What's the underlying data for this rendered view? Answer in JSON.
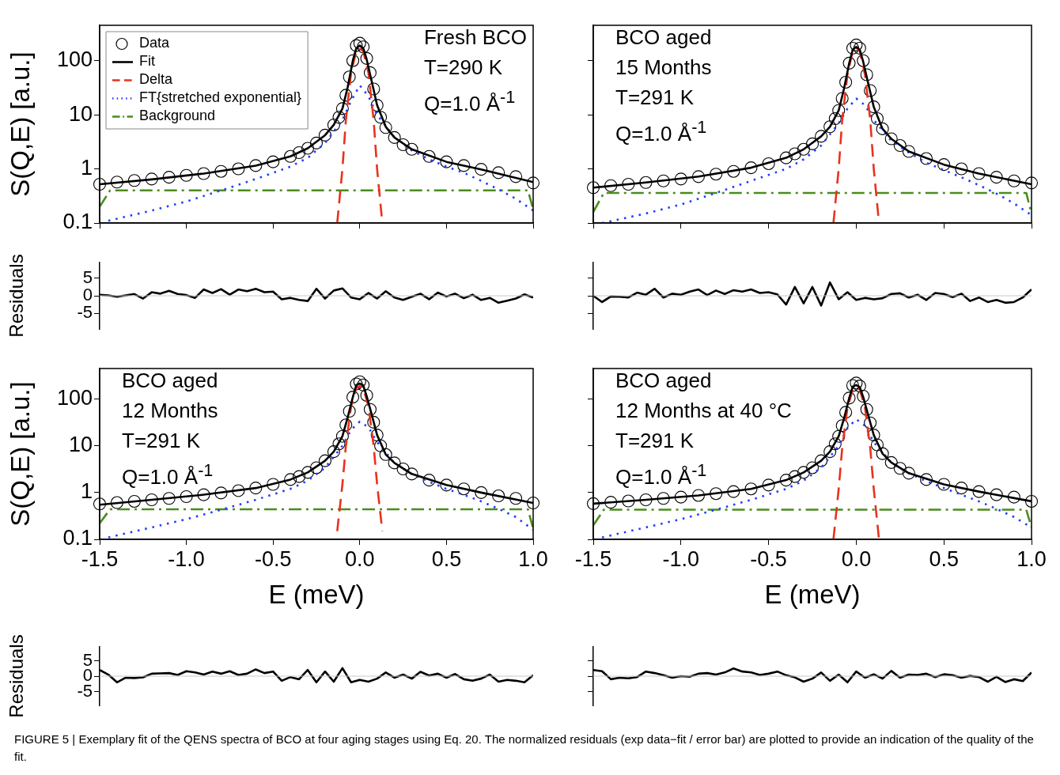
{
  "chart_data": [
    {
      "type": "line",
      "ylabel": "S(Q,E) [a.u.]",
      "log": true,
      "xlim": [
        -1.5,
        1.0
      ],
      "xticks": [
        -1.5,
        -1,
        -0.5,
        0,
        0.5,
        1
      ],
      "ylim": [
        0.1,
        450
      ],
      "yticks": [
        0.1,
        1,
        10,
        100
      ],
      "tick_labels": "y",
      "legend": "top left",
      "annotations": [
        "Fresh BCO",
        "T=290 K",
        "Q=1.0 Å$^{-1}$"
      ],
      "series": [
        {
          "name": "Data",
          "type": "scatter",
          "marker": "circle",
          "color": "#000000",
          "x": [
            -1.5,
            -1.4,
            -1.3,
            -1.2,
            -1.1,
            -1.0,
            -0.9,
            -0.8,
            -0.7,
            -0.6,
            -0.5,
            -0.4,
            -0.35,
            -0.3,
            -0.25,
            -0.2,
            -0.15,
            -0.12,
            -0.1,
            -0.08,
            -0.06,
            -0.04,
            -0.02,
            0,
            0.02,
            0.04,
            0.06,
            0.08,
            0.1,
            0.12,
            0.15,
            0.2,
            0.25,
            0.3,
            0.4,
            0.5,
            0.6,
            0.7,
            0.8,
            0.9,
            1.0
          ],
          "values": [
            0.52,
            0.57,
            0.61,
            0.65,
            0.7,
            0.76,
            0.82,
            0.9,
            1.0,
            1.15,
            1.35,
            1.7,
            2.0,
            2.4,
            3.0,
            4.2,
            6.5,
            9,
            13,
            23,
            50,
            100,
            190,
            210,
            180,
            110,
            60,
            30,
            15,
            9,
            5.8,
            3.8,
            2.8,
            2.3,
            1.7,
            1.35,
            1.15,
            0.98,
            0.85,
            0.72,
            0.55
          ]
        },
        {
          "name": "Fit",
          "type": "line",
          "line_style": "solid",
          "color": "#000000",
          "x": [
            -1.5,
            -1.2,
            -0.9,
            -0.6,
            -0.4,
            -0.3,
            -0.2,
            -0.15,
            -0.1,
            -0.07,
            -0.04,
            -0.02,
            0,
            0.02,
            0.04,
            0.07,
            0.1,
            0.15,
            0.2,
            0.3,
            0.5,
            0.7,
            1.0
          ],
          "values": [
            0.52,
            0.64,
            0.82,
            1.15,
            1.7,
            2.4,
            4.2,
            6.5,
            13,
            32,
            100,
            170,
            190,
            170,
            105,
            40,
            15,
            6,
            3.8,
            2.3,
            1.35,
            0.98,
            0.57
          ]
        },
        {
          "name": "Delta",
          "type": "line",
          "line_style": "dashed",
          "color": "#e8321e",
          "x": [
            -0.13,
            -0.1,
            -0.08,
            -0.05,
            -0.02,
            0,
            0.02,
            0.05,
            0.08,
            0.1,
            0.13
          ],
          "values": [
            0.1,
            1,
            8,
            60,
            150,
            170,
            150,
            60,
            8,
            1,
            0.1
          ]
        },
        {
          "name": "FT{stretched exponential}",
          "type": "line",
          "line_style": "dotted",
          "color": "#1f3cff",
          "x": [
            -1.45,
            -1.2,
            -1.0,
            -0.8,
            -0.6,
            -0.4,
            -0.3,
            -0.2,
            -0.1,
            -0.05,
            0,
            0.05,
            0.1,
            0.2,
            0.3,
            0.4,
            0.5,
            0.6,
            0.7,
            0.8,
            0.9,
            1.0
          ],
          "values": [
            0.11,
            0.17,
            0.25,
            0.4,
            0.65,
            1.1,
            1.6,
            3.0,
            8,
            18,
            35,
            22,
            10,
            3.8,
            2.2,
            1.5,
            1.1,
            0.85,
            0.6,
            0.42,
            0.28,
            0.17
          ]
        },
        {
          "name": "Background",
          "type": "line",
          "line_style": "dashdot",
          "color": "#4a8c1c",
          "x": [
            -1.5,
            -1.44,
            0.97,
            1.0
          ],
          "values": [
            0.2,
            0.4,
            0.4,
            0.18
          ]
        }
      ]
    },
    {
      "type": "line",
      "log": true,
      "xlim": [
        -1.5,
        1.0
      ],
      "xticks": [
        -1.5,
        -1,
        -0.5,
        0,
        0.5,
        1
      ],
      "ylim": [
        0.1,
        450
      ],
      "yticks": [
        0.1,
        1,
        10,
        100
      ],
      "tick_labels": false,
      "annotations": [
        "BCO aged",
        "15 Months",
        "T=291 K",
        "Q=1.0 Å$^{-1}$"
      ],
      "series": [
        {
          "type": "scatter",
          "marker": "circle",
          "color": "#000000",
          "x": [
            -1.5,
            -1.4,
            -1.3,
            -1.2,
            -1.1,
            -1.0,
            -0.9,
            -0.8,
            -0.7,
            -0.6,
            -0.5,
            -0.4,
            -0.35,
            -0.3,
            -0.25,
            -0.2,
            -0.15,
            -0.12,
            -0.1,
            -0.08,
            -0.06,
            -0.04,
            -0.02,
            0,
            0.02,
            0.04,
            0.06,
            0.08,
            0.1,
            0.12,
            0.15,
            0.2,
            0.25,
            0.3,
            0.4,
            0.5,
            0.6,
            0.7,
            0.8,
            0.9,
            1.0
          ],
          "values": [
            0.45,
            0.49,
            0.52,
            0.56,
            0.6,
            0.65,
            0.72,
            0.8,
            0.9,
            1.05,
            1.25,
            1.6,
            1.9,
            2.3,
            2.9,
            4.0,
            6.0,
            8.5,
            12,
            20,
            40,
            90,
            170,
            195,
            170,
            100,
            55,
            28,
            14,
            8.5,
            5.5,
            3.6,
            2.7,
            2.1,
            1.55,
            1.2,
            1.0,
            0.82,
            0.7,
            0.6,
            0.55
          ]
        },
        {
          "type": "line",
          "line_style": "solid",
          "color": "#000000",
          "x": [
            -1.5,
            -1.2,
            -0.9,
            -0.6,
            -0.4,
            -0.3,
            -0.2,
            -0.15,
            -0.1,
            -0.07,
            -0.04,
            -0.02,
            0,
            0.02,
            0.04,
            0.07,
            0.1,
            0.15,
            0.2,
            0.3,
            0.5,
            0.7,
            1.0
          ],
          "values": [
            0.45,
            0.56,
            0.72,
            1.05,
            1.6,
            2.3,
            4.0,
            6.0,
            12,
            30,
            90,
            160,
            180,
            160,
            95,
            36,
            14,
            5.5,
            3.6,
            2.1,
            1.2,
            0.82,
            0.52
          ]
        },
        {
          "type": "line",
          "line_style": "dashed",
          "color": "#e8321e",
          "x": [
            -0.13,
            -0.1,
            -0.08,
            -0.05,
            -0.02,
            0,
            0.02,
            0.05,
            0.08,
            0.1,
            0.13
          ],
          "values": [
            0.1,
            1,
            8,
            55,
            150,
            173,
            150,
            55,
            8,
            1,
            0.1
          ]
        },
        {
          "type": "line",
          "line_style": "dotted",
          "color": "#1f3cff",
          "x": [
            -1.45,
            -1.2,
            -1.0,
            -0.8,
            -0.6,
            -0.4,
            -0.3,
            -0.2,
            -0.1,
            -0.05,
            0,
            0.05,
            0.1,
            0.2,
            0.3,
            0.4,
            0.5,
            0.6,
            0.7,
            0.8,
            0.9,
            1.0
          ],
          "values": [
            0.1,
            0.15,
            0.22,
            0.36,
            0.6,
            1.0,
            1.5,
            2.7,
            7,
            13,
            20,
            15,
            8,
            3.3,
            2.0,
            1.3,
            0.95,
            0.7,
            0.5,
            0.35,
            0.23,
            0.14
          ]
        },
        {
          "type": "line",
          "line_style": "dashdot",
          "color": "#4a8c1c",
          "x": [
            -1.5,
            -1.44,
            0.97,
            1.0
          ],
          "values": [
            0.16,
            0.36,
            0.36,
            0.15
          ]
        }
      ]
    },
    {
      "type": "line",
      "ylabel": "Residuals",
      "xlim": [
        -1.5,
        1.0
      ],
      "ylim": [
        -9.5,
        9.5
      ],
      "yticks": [
        -5,
        0,
        5
      ],
      "tick_labels": "y",
      "color": "#000000",
      "ref_lines": [
        {
          "axis": "y",
          "value": 0,
          "color": "#c8c8c8"
        }
      ],
      "x": [
        -1.5,
        -1.45,
        -1.4,
        -1.35,
        -1.3,
        -1.25,
        -1.2,
        -1.15,
        -1.1,
        -1.05,
        -1.0,
        -0.95,
        -0.9,
        -0.85,
        -0.8,
        -0.75,
        -0.7,
        -0.65,
        -0.6,
        -0.55,
        -0.5,
        -0.45,
        -0.4,
        -0.35,
        -0.3,
        -0.25,
        -0.2,
        -0.15,
        -0.1,
        -0.05,
        0,
        0.05,
        0.1,
        0.15,
        0.2,
        0.25,
        0.3,
        0.35,
        0.4,
        0.45,
        0.5,
        0.55,
        0.6,
        0.65,
        0.7,
        0.75,
        0.8,
        0.85,
        0.9,
        0.95,
        1.0
      ],
      "values": [
        0.3,
        0.1,
        -0.3,
        0.1,
        0.5,
        -0.8,
        1.0,
        0.6,
        1.4,
        0.5,
        0.2,
        -0.6,
        1.8,
        0.8,
        1.9,
        0.3,
        1.8,
        1.3,
        2.0,
        1.0,
        1.2,
        -1.0,
        -0.6,
        -1.2,
        -1.5,
        2.0,
        -0.8,
        1.5,
        2.1,
        -0.5,
        -1.0,
        0.8,
        -0.8,
        1.3,
        -0.5,
        -1.2,
        -0.3,
        0.6,
        -1.0,
        0.9,
        -0.2,
        0.6,
        -0.7,
        0.3,
        -1.2,
        -0.6,
        -2.0,
        -1.4,
        -0.8,
        0.4,
        -0.5
      ]
    },
    {
      "type": "line",
      "xlim": [
        -1.5,
        1.0
      ],
      "ylim": [
        -9.5,
        9.5
      ],
      "yticks": [
        -5,
        0,
        5
      ],
      "tick_labels": false,
      "color": "#000000",
      "ref_lines": [
        {
          "axis": "y",
          "value": 0,
          "color": "#c8c8c8"
        }
      ],
      "x": [
        -1.5,
        -1.45,
        -1.4,
        -1.35,
        -1.3,
        -1.25,
        -1.2,
        -1.15,
        -1.1,
        -1.05,
        -1.0,
        -0.95,
        -0.9,
        -0.85,
        -0.8,
        -0.75,
        -0.7,
        -0.65,
        -0.6,
        -0.55,
        -0.5,
        -0.45,
        -0.4,
        -0.35,
        -0.3,
        -0.25,
        -0.2,
        -0.15,
        -0.1,
        -0.05,
        0,
        0.05,
        0.1,
        0.15,
        0.2,
        0.25,
        0.3,
        0.35,
        0.4,
        0.45,
        0.5,
        0.55,
        0.6,
        0.65,
        0.7,
        0.75,
        0.8,
        0.85,
        0.9,
        0.95,
        1.0
      ],
      "values": [
        0,
        -1.8,
        -0.2,
        -0.3,
        -0.5,
        0.9,
        0.3,
        2.0,
        -0.5,
        0.6,
        0.3,
        1.2,
        1.8,
        0.2,
        1.5,
        0.5,
        1.6,
        1.2,
        1.8,
        0.8,
        1.0,
        0.4,
        -2.5,
        2.5,
        -2.2,
        2.5,
        -2.8,
        3.8,
        -1.0,
        1.0,
        -1.2,
        -0.6,
        -1.0,
        -0.7,
        0.5,
        0.7,
        -0.5,
        0.3,
        -1.2,
        0.8,
        0.5,
        -0.4,
        0.6,
        -1.5,
        -0.5,
        -1.8,
        -1.2,
        -2.0,
        -1.8,
        -0.5,
        1.8
      ]
    },
    {
      "type": "line",
      "xlabel": "E (meV)",
      "ylabel": "S(Q,E) [a.u.]",
      "log": true,
      "xlim": [
        -1.5,
        1.0
      ],
      "xticks": [
        {
          "value": -1.5,
          "label": "-1.5"
        },
        {
          "value": -1,
          "label": "-1.0"
        },
        {
          "value": -0.5,
          "label": "-0.5"
        },
        {
          "value": 0,
          "label": "0.0"
        },
        {
          "value": 0.5,
          "label": "0.5"
        },
        {
          "value": 1,
          "label": "1.0"
        }
      ],
      "ylim": [
        0.1,
        450
      ],
      "yticks": [
        0.1,
        1,
        10,
        100
      ],
      "annotations": [
        "BCO aged",
        "12 Months",
        "T=291 K",
        "Q=1.0 Å$^{-1}$"
      ],
      "series": [
        {
          "type": "scatter",
          "marker": "circle",
          "color": "#000000",
          "x": [
            -1.5,
            -1.4,
            -1.3,
            -1.2,
            -1.1,
            -1.0,
            -0.9,
            -0.8,
            -0.7,
            -0.6,
            -0.5,
            -0.4,
            -0.35,
            -0.3,
            -0.25,
            -0.2,
            -0.15,
            -0.12,
            -0.1,
            -0.08,
            -0.06,
            -0.04,
            -0.02,
            0,
            0.02,
            0.04,
            0.06,
            0.08,
            0.1,
            0.12,
            0.15,
            0.2,
            0.25,
            0.3,
            0.4,
            0.5,
            0.6,
            0.7,
            0.8,
            0.9,
            1.0
          ],
          "values": [
            0.57,
            0.61,
            0.65,
            0.7,
            0.75,
            0.82,
            0.9,
            0.98,
            1.1,
            1.25,
            1.5,
            1.9,
            2.2,
            2.7,
            3.4,
            4.8,
            7.5,
            11,
            16,
            28,
            55,
            110,
            210,
            235,
            200,
            120,
            60,
            32,
            17,
            10,
            6.5,
            4.3,
            3.2,
            2.5,
            1.85,
            1.45,
            1.2,
            1.0,
            0.85,
            0.75,
            0.6
          ]
        },
        {
          "type": "line",
          "line_style": "solid",
          "color": "#000000",
          "x": [
            -1.5,
            -1.2,
            -0.9,
            -0.6,
            -0.4,
            -0.3,
            -0.2,
            -0.15,
            -0.1,
            -0.07,
            -0.04,
            -0.02,
            0,
            0.02,
            0.04,
            0.07,
            0.1,
            0.15,
            0.2,
            0.3,
            0.5,
            0.7,
            1.0
          ],
          "values": [
            0.55,
            0.7,
            0.9,
            1.25,
            1.9,
            2.7,
            4.8,
            7.5,
            16,
            40,
            110,
            200,
            215,
            195,
            115,
            45,
            17,
            6.5,
            4.3,
            2.5,
            1.45,
            1.0,
            0.6
          ]
        },
        {
          "type": "line",
          "line_style": "dashed",
          "color": "#e8321e",
          "x": [
            -0.13,
            -0.1,
            -0.08,
            -0.05,
            -0.02,
            0,
            0.02,
            0.05,
            0.08,
            0.1,
            0.13
          ],
          "values": [
            0.15,
            1.5,
            10,
            70,
            170,
            190,
            170,
            70,
            10,
            1.5,
            0.15
          ]
        },
        {
          "type": "line",
          "line_style": "dotted",
          "color": "#1f3cff",
          "x": [
            -1.45,
            -1.2,
            -1.0,
            -0.8,
            -0.6,
            -0.4,
            -0.3,
            -0.2,
            -0.1,
            -0.05,
            0,
            0.05,
            0.1,
            0.2,
            0.3,
            0.4,
            0.5,
            0.6,
            0.7,
            0.8,
            0.9,
            1.0
          ],
          "values": [
            0.11,
            0.18,
            0.27,
            0.43,
            0.7,
            1.2,
            1.8,
            3.4,
            10,
            22,
            33,
            25,
            12,
            4.3,
            2.5,
            1.7,
            1.2,
            0.9,
            0.65,
            0.45,
            0.3,
            0.16
          ]
        },
        {
          "type": "line",
          "line_style": "dashdot",
          "color": "#4a8c1c",
          "x": [
            -1.5,
            -1.44,
            0.97,
            1.0
          ],
          "values": [
            0.22,
            0.44,
            0.44,
            0.17
          ]
        }
      ]
    },
    {
      "type": "line",
      "xlabel": "E (meV)",
      "log": true,
      "xlim": [
        -1.5,
        1.0
      ],
      "xticks": [
        {
          "value": -1.5,
          "label": "-1.5"
        },
        {
          "value": -1,
          "label": "-1.0"
        },
        {
          "value": -0.5,
          "label": "-0.5"
        },
        {
          "value": 0,
          "label": "0.0"
        },
        {
          "value": 0.5,
          "label": "0.5"
        },
        {
          "value": 1,
          "label": "1.0"
        }
      ],
      "ylim": [
        0.1,
        450
      ],
      "yticks": [
        0.1,
        1,
        10,
        100
      ],
      "tick_labels": "x",
      "annotations": [
        "BCO aged",
        "12 Months at 40 °C",
        "T=291 K",
        "Q=1.0 Å$^{-1}$"
      ],
      "series": [
        {
          "type": "scatter",
          "marker": "circle",
          "color": "#000000",
          "x": [
            -1.5,
            -1.4,
            -1.3,
            -1.2,
            -1.1,
            -1.0,
            -0.9,
            -0.8,
            -0.7,
            -0.6,
            -0.5,
            -0.4,
            -0.35,
            -0.3,
            -0.25,
            -0.2,
            -0.15,
            -0.12,
            -0.1,
            -0.08,
            -0.06,
            -0.04,
            -0.02,
            0,
            0.02,
            0.04,
            0.06,
            0.08,
            0.1,
            0.12,
            0.15,
            0.2,
            0.25,
            0.3,
            0.4,
            0.5,
            0.6,
            0.7,
            0.8,
            0.9,
            1.0
          ],
          "values": [
            0.58,
            0.62,
            0.66,
            0.7,
            0.75,
            0.8,
            0.87,
            0.95,
            1.05,
            1.2,
            1.45,
            1.85,
            2.2,
            2.7,
            3.4,
            4.8,
            7.5,
            11,
            16,
            27,
            52,
            105,
            195,
            220,
            190,
            115,
            60,
            31,
            17,
            10.5,
            6.8,
            4.4,
            3.3,
            2.6,
            1.9,
            1.5,
            1.25,
            1.05,
            0.9,
            0.8,
            0.65
          ]
        },
        {
          "type": "line",
          "line_style": "solid",
          "color": "#000000",
          "x": [
            -1.5,
            -1.2,
            -0.9,
            -0.6,
            -0.4,
            -0.3,
            -0.2,
            -0.15,
            -0.1,
            -0.07,
            -0.04,
            -0.02,
            0,
            0.02,
            0.04,
            0.07,
            0.1,
            0.15,
            0.2,
            0.3,
            0.5,
            0.7,
            1.0
          ],
          "values": [
            0.58,
            0.7,
            0.87,
            1.2,
            1.85,
            2.7,
            4.8,
            7.5,
            16,
            38,
            105,
            185,
            200,
            180,
            110,
            43,
            17,
            6.8,
            4.4,
            2.6,
            1.5,
            1.05,
            0.65
          ]
        },
        {
          "type": "line",
          "line_style": "dashed",
          "color": "#e8321e",
          "x": [
            -0.13,
            -0.1,
            -0.08,
            -0.05,
            -0.02,
            0,
            0.02,
            0.05,
            0.08,
            0.1,
            0.13
          ],
          "values": [
            0.1,
            1.2,
            9,
            65,
            160,
            180,
            160,
            65,
            9,
            1.2,
            0.1
          ]
        },
        {
          "type": "line",
          "line_style": "dotted",
          "color": "#1f3cff",
          "x": [
            -1.45,
            -1.2,
            -1.0,
            -0.8,
            -0.6,
            -0.4,
            -0.3,
            -0.2,
            -0.1,
            -0.05,
            0,
            0.05,
            0.1,
            0.2,
            0.3,
            0.4,
            0.5,
            0.6,
            0.7,
            0.8,
            0.9,
            1.0
          ],
          "values": [
            0.11,
            0.18,
            0.27,
            0.43,
            0.7,
            1.2,
            1.8,
            3.4,
            10,
            24,
            37,
            27,
            12,
            4.4,
            2.6,
            1.75,
            1.25,
            0.9,
            0.65,
            0.45,
            0.3,
            0.18
          ]
        },
        {
          "type": "line",
          "line_style": "dashdot",
          "color": "#4a8c1c",
          "x": [
            -1.5,
            -1.44,
            0.97,
            1.0
          ],
          "values": [
            0.2,
            0.43,
            0.43,
            0.18
          ]
        }
      ]
    },
    {
      "type": "line",
      "ylabel": "Residuals",
      "xlim": [
        -1.5,
        1.0
      ],
      "ylim": [
        -9.5,
        9.5
      ],
      "yticks": [
        -5,
        0,
        5
      ],
      "tick_labels": "y",
      "color": "#000000",
      "ref_lines": [
        {
          "axis": "y",
          "value": 0,
          "color": "#c8c8c8"
        }
      ],
      "x": [
        -1.5,
        -1.45,
        -1.4,
        -1.35,
        -1.3,
        -1.25,
        -1.2,
        -1.15,
        -1.1,
        -1.05,
        -1.0,
        -0.95,
        -0.9,
        -0.85,
        -0.8,
        -0.75,
        -0.7,
        -0.65,
        -0.6,
        -0.55,
        -0.5,
        -0.45,
        -0.4,
        -0.35,
        -0.3,
        -0.25,
        -0.2,
        -0.15,
        -0.1,
        -0.05,
        0,
        0.05,
        0.1,
        0.15,
        0.2,
        0.25,
        0.3,
        0.35,
        0.4,
        0.45,
        0.5,
        0.55,
        0.6,
        0.65,
        0.7,
        0.75,
        0.8,
        0.85,
        0.9,
        0.95,
        1.0
      ],
      "values": [
        2.0,
        0.5,
        -2.0,
        -0.5,
        -0.6,
        -0.4,
        0.8,
        0.9,
        1.0,
        0.4,
        1.6,
        1.2,
        0.5,
        1.5,
        0.8,
        1.6,
        0.4,
        0.8,
        2.2,
        1.0,
        1.5,
        -1.5,
        -0.3,
        -1.0,
        2.0,
        -2.0,
        1.5,
        -1.8,
        2.6,
        -2.0,
        -1.2,
        -1.8,
        -0.8,
        1.2,
        -0.5,
        0.5,
        -0.8,
        1.4,
        0.2,
        0.8,
        -0.5,
        0.7,
        -1.0,
        -1.5,
        -0.8,
        0.5,
        -1.8,
        -1.2,
        -1.5,
        -2.0,
        0.3
      ]
    },
    {
      "type": "line",
      "xlim": [
        -1.5,
        1.0
      ],
      "ylim": [
        -9.5,
        9.5
      ],
      "yticks": [
        -5,
        0,
        5
      ],
      "tick_labels": false,
      "color": "#000000",
      "ref_lines": [
        {
          "axis": "y",
          "value": 0,
          "color": "#c8c8c8"
        }
      ],
      "x": [
        -1.5,
        -1.45,
        -1.4,
        -1.35,
        -1.3,
        -1.25,
        -1.2,
        -1.15,
        -1.1,
        -1.05,
        -1.0,
        -0.95,
        -0.9,
        -0.85,
        -0.8,
        -0.75,
        -0.7,
        -0.65,
        -0.6,
        -0.55,
        -0.5,
        -0.45,
        -0.4,
        -0.35,
        -0.3,
        -0.25,
        -0.2,
        -0.15,
        -0.1,
        -0.05,
        0,
        0.05,
        0.1,
        0.15,
        0.2,
        0.25,
        0.3,
        0.35,
        0.4,
        0.45,
        0.5,
        0.55,
        0.6,
        0.65,
        0.7,
        0.75,
        0.8,
        0.85,
        0.9,
        0.95,
        1.0
      ],
      "values": [
        2.0,
        1.6,
        -1.0,
        -0.5,
        -0.7,
        -0.3,
        1.5,
        1.0,
        0.3,
        -0.5,
        0,
        -0.2,
        0.8,
        1.0,
        0.5,
        1.2,
        2.5,
        1.5,
        1.2,
        0.4,
        0.8,
        1.5,
        0.3,
        -0.4,
        -1.8,
        -0.8,
        1.2,
        -1.5,
        0.5,
        -2.0,
        1.5,
        -0.5,
        0.6,
        -0.8,
        1.7,
        -0.5,
        0.5,
        0.4,
        0.8,
        -0.3,
        0.6,
        0.3,
        -0.5,
        0.1,
        -0.3,
        -1.8,
        -0.2,
        -1.9,
        -1.0,
        -1.6,
        1.2
      ]
    },
    {
      "type": "other",
      "annotations": [
        "FIGURE 5 | Exemplary fit of the QENS spectra of BCO at four aging stages using Eq. 20. The normalized residuals (exp data−fit / error bar) are plotted to provide an indication of the quality of the fit."
      ]
    }
  ]
}
